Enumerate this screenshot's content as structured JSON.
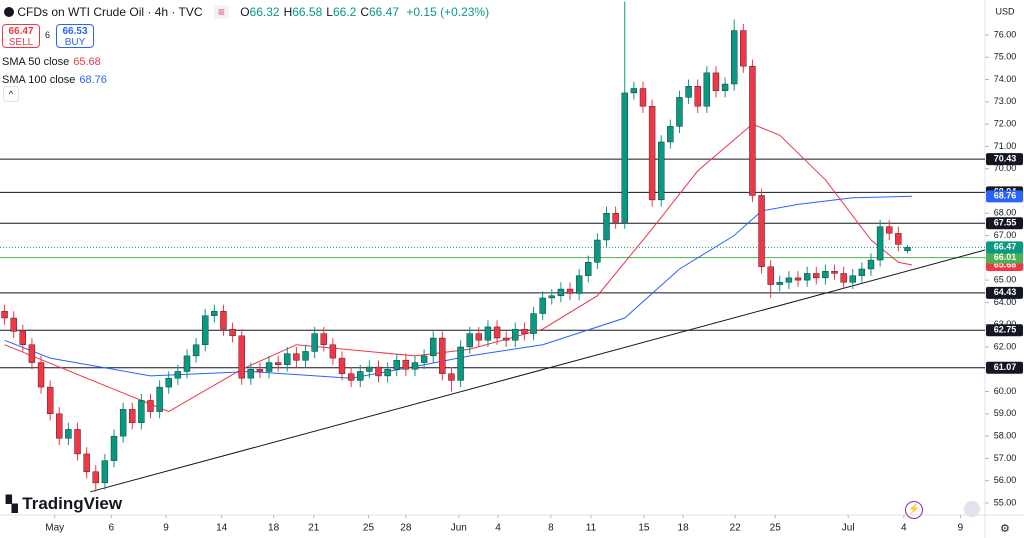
{
  "chart_data": {
    "type": "candlestick",
    "title": "CFDs on WTI Crude Oil · 4h · TVC",
    "ohlc": [
      {
        "label": "O",
        "value": 66.32
      },
      {
        "label": "H",
        "value": 66.58
      },
      {
        "label": "L",
        "value": 66.2
      },
      {
        "label": "C",
        "value": 66.47
      }
    ],
    "change": "+0.15 (+0.23%)",
    "sell": {
      "price": 66.47,
      "label": "SELL"
    },
    "spread": 6,
    "buy": {
      "price": 66.53,
      "label": "BUY"
    },
    "currency": "USD",
    "brand": "TradingView",
    "up_color": "#089981",
    "down_color": "#f23645",
    "open": [
      63.6,
      63.3,
      62.7,
      62.1,
      61.3,
      60.2,
      59.0,
      57.9,
      58.3,
      57.2,
      56.4,
      55.9,
      56.9,
      58.0,
      59.2,
      58.6,
      59.6,
      59.1,
      60.2,
      60.6,
      60.9,
      61.6,
      62.1,
      63.4,
      63.6,
      62.8,
      62.5,
      60.6,
      61.0,
      60.9,
      61.3,
      61.2,
      61.7,
      61.4,
      61.8,
      62.6,
      62.1,
      61.5,
      60.8,
      60.5,
      60.9,
      61.1,
      60.7,
      61.0,
      61.4,
      61.0,
      61.3,
      61.6,
      62.4,
      60.8,
      60.5,
      62.0,
      62.6,
      62.3,
      62.9,
      62.4,
      62.3,
      62.8,
      62.6,
      63.5,
      64.2,
      64.3,
      64.6,
      64.4,
      65.2,
      65.8,
      66.8,
      68.0,
      67.6,
      73.4,
      73.6,
      72.8,
      68.6,
      71.2,
      71.9,
      73.2,
      73.7,
      72.8,
      74.3,
      73.5,
      73.8,
      76.2,
      74.6,
      68.8,
      65.6,
      64.8,
      64.9,
      65.1,
      65.0,
      65.3,
      65.1,
      65.4,
      65.3,
      64.9,
      65.2,
      65.5,
      65.9,
      67.4,
      67.1,
      66.32
    ],
    "high": [
      63.9,
      63.6,
      63.0,
      62.4,
      61.6,
      60.5,
      59.3,
      58.6,
      58.6,
      57.5,
      56.7,
      57.2,
      58.3,
      59.5,
      59.5,
      59.9,
      59.9,
      60.5,
      60.9,
      61.2,
      61.9,
      62.4,
      63.7,
      63.9,
      63.9,
      63.1,
      62.8,
      61.3,
      61.3,
      61.6,
      61.6,
      62.0,
      62.0,
      62.1,
      62.9,
      62.9,
      62.4,
      61.8,
      61.1,
      61.2,
      61.4,
      61.4,
      61.3,
      61.7,
      61.7,
      61.6,
      61.9,
      62.7,
      62.7,
      61.1,
      62.3,
      62.9,
      62.9,
      63.2,
      63.2,
      62.7,
      63.1,
      63.1,
      63.8,
      64.5,
      64.6,
      64.9,
      64.9,
      65.5,
      66.1,
      67.1,
      68.3,
      68.3,
      77.5,
      73.9,
      73.9,
      73.1,
      71.5,
      72.2,
      73.5,
      74.0,
      74.0,
      74.6,
      74.6,
      74.1,
      76.7,
      76.5,
      74.9,
      69.1,
      65.9,
      65.2,
      65.4,
      65.4,
      65.6,
      65.6,
      65.7,
      65.7,
      65.6,
      65.5,
      65.8,
      66.2,
      67.7,
      67.7,
      67.4,
      66.58
    ],
    "low": [
      63.0,
      62.4,
      61.8,
      61.0,
      59.9,
      58.7,
      57.6,
      57.6,
      56.9,
      56.1,
      55.5,
      55.6,
      56.6,
      57.7,
      58.3,
      58.3,
      58.8,
      58.8,
      59.9,
      60.3,
      60.6,
      61.3,
      61.8,
      63.1,
      62.5,
      62.2,
      60.3,
      60.3,
      60.6,
      60.6,
      60.9,
      60.9,
      61.1,
      61.1,
      61.5,
      61.8,
      61.2,
      60.5,
      60.2,
      60.2,
      60.6,
      60.4,
      60.4,
      60.7,
      60.7,
      60.7,
      61.0,
      61.3,
      60.5,
      60.0,
      60.2,
      61.7,
      62.0,
      62.0,
      62.1,
      62.0,
      62.0,
      62.3,
      62.3,
      63.2,
      63.9,
      64.0,
      64.1,
      64.1,
      64.9,
      65.5,
      66.5,
      67.3,
      67.3,
      73.1,
      72.5,
      68.3,
      68.3,
      70.9,
      71.6,
      72.9,
      72.5,
      72.5,
      73.2,
      73.2,
      73.5,
      74.3,
      68.5,
      65.3,
      64.2,
      64.5,
      64.6,
      64.7,
      64.7,
      64.8,
      64.8,
      65.0,
      64.6,
      64.6,
      64.9,
      65.2,
      65.6,
      66.8,
      66.3,
      66.2
    ],
    "close": [
      63.3,
      62.7,
      62.1,
      61.3,
      60.2,
      59.0,
      57.9,
      58.3,
      57.2,
      56.4,
      55.9,
      56.9,
      58.0,
      59.2,
      58.6,
      59.6,
      59.1,
      60.2,
      60.6,
      60.9,
      61.6,
      62.1,
      63.4,
      63.6,
      62.8,
      62.5,
      60.6,
      61.0,
      60.9,
      61.3,
      61.2,
      61.7,
      61.4,
      61.8,
      62.6,
      62.1,
      61.5,
      60.8,
      60.5,
      60.9,
      61.1,
      60.7,
      61.0,
      61.4,
      61.0,
      61.3,
      61.6,
      62.4,
      60.8,
      60.5,
      62.0,
      62.6,
      62.3,
      62.9,
      62.4,
      62.3,
      62.8,
      62.6,
      63.5,
      64.2,
      64.3,
      64.6,
      64.4,
      65.2,
      65.8,
      66.8,
      68.0,
      67.6,
      73.4,
      73.6,
      72.8,
      68.6,
      71.2,
      71.9,
      73.2,
      73.7,
      72.8,
      74.3,
      73.5,
      73.8,
      76.2,
      74.6,
      68.8,
      65.6,
      64.8,
      64.9,
      65.1,
      65.0,
      65.3,
      65.1,
      65.4,
      65.3,
      64.9,
      65.2,
      65.5,
      65.9,
      67.4,
      67.1,
      66.6,
      66.47
    ],
    "series": [
      {
        "name": "SMA 50 close",
        "color": "#f23645",
        "x": [
          0,
          18,
          26,
          32,
          45,
          51,
          59,
          65,
          71,
          76,
          82,
          85,
          90,
          95,
          98,
          99.5
        ],
        "values": [
          62.1,
          59.1,
          61.0,
          62.1,
          61.6,
          61.9,
          62.8,
          64.3,
          67.3,
          69.9,
          72.0,
          71.5,
          69.5,
          66.8,
          65.8,
          65.68
        ]
      },
      {
        "name": "SMA 100 close",
        "color": "#2962ff",
        "x": [
          0,
          5,
          16,
          27,
          38,
          46,
          51,
          59,
          68,
          74,
          80,
          83,
          87,
          93,
          99.5
        ],
        "values": [
          62.3,
          61.5,
          60.7,
          60.9,
          60.6,
          61.2,
          61.6,
          62.1,
          63.3,
          65.5,
          67.0,
          68.1,
          68.4,
          68.7,
          68.76
        ]
      }
    ],
    "trendline": {
      "x": [
        9.4,
        107.5
      ],
      "values": [
        55.5,
        66.35
      ]
    },
    "levels": [
      70.43,
      68.94,
      67.55,
      64.43,
      62.75,
      61.07
    ],
    "price_lines": [
      {
        "value": 66.01,
        "color": "#4caf50"
      }
    ],
    "xlim": [
      -0.5,
      107.5
    ],
    "ylim": [
      54.46,
      77.57
    ],
    "xticks": [
      {
        "value": 5.5,
        "label": "May"
      },
      {
        "value": 11.7,
        "label": "6"
      },
      {
        "value": 17.7,
        "label": "9"
      },
      {
        "value": 23.8,
        "label": "14"
      },
      {
        "value": 29.5,
        "label": "18"
      },
      {
        "value": 33.9,
        "label": "21"
      },
      {
        "value": 39.9,
        "label": "25"
      },
      {
        "value": 44.0,
        "label": "28"
      },
      {
        "value": 49.8,
        "label": "Jun"
      },
      {
        "value": 54.1,
        "label": "4"
      },
      {
        "value": 59.9,
        "label": "8"
      },
      {
        "value": 64.3,
        "label": "11"
      },
      {
        "value": 70.1,
        "label": "15"
      },
      {
        "value": 74.4,
        "label": "18"
      },
      {
        "value": 80.1,
        "label": "22"
      },
      {
        "value": 84.5,
        "label": "25"
      },
      {
        "value": 92.5,
        "label": "Jul"
      },
      {
        "value": 98.6,
        "label": "4"
      },
      {
        "value": 104.8,
        "label": "9"
      }
    ],
    "yticks": [
      {
        "value": 55,
        "label": "55.00"
      },
      {
        "value": 56,
        "label": "56.00"
      },
      {
        "value": 57,
        "label": "57.00"
      },
      {
        "value": 58,
        "label": "58.00"
      },
      {
        "value": 59,
        "label": "59.00"
      },
      {
        "value": 60,
        "label": "60.00"
      },
      {
        "value": 61,
        "label": "61.00"
      },
      {
        "value": 62,
        "label": "62.00"
      },
      {
        "value": 63,
        "label": "63.00"
      },
      {
        "value": 64,
        "label": "64.00"
      },
      {
        "value": 65,
        "label": "65.00"
      },
      {
        "value": 66,
        "label": "66.00"
      },
      {
        "value": 67,
        "label": "67.00"
      },
      {
        "value": 68,
        "label": "68.00"
      },
      {
        "value": 69,
        "label": "69.00"
      },
      {
        "value": 70,
        "label": "70.00"
      },
      {
        "value": 71,
        "label": "71.00"
      },
      {
        "value": 72,
        "label": "72.00"
      },
      {
        "value": 73,
        "label": "73.00"
      },
      {
        "value": 74,
        "label": "74.00"
      },
      {
        "value": 75,
        "label": "75.00"
      },
      {
        "value": 76,
        "label": "76.00"
      }
    ]
  }
}
